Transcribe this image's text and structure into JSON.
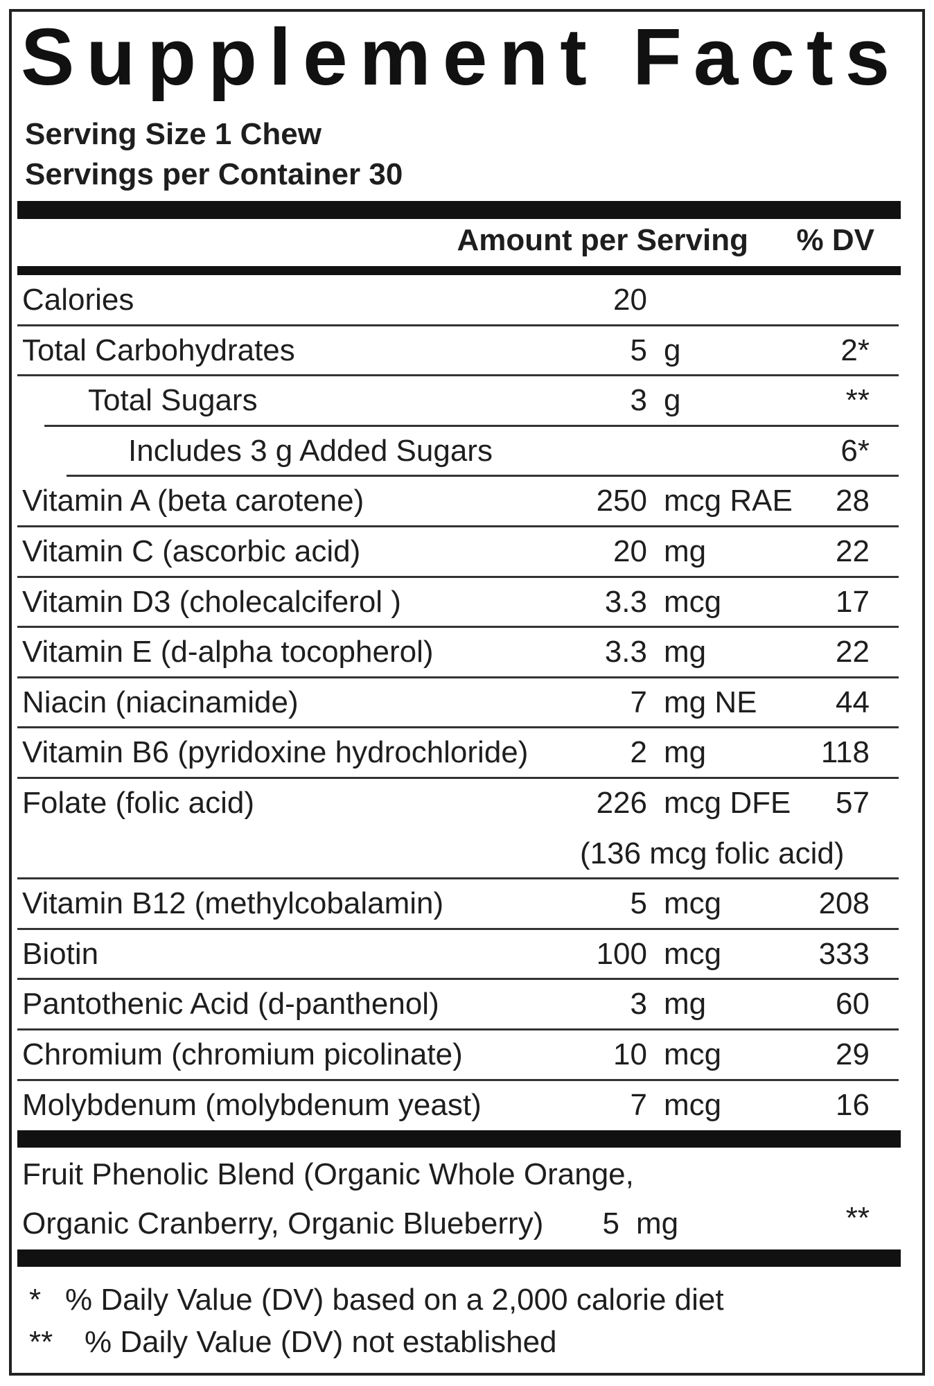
{
  "title": "Supplement Facts",
  "serving_size": "Serving Size 1 Chew",
  "servings_per_container": "Servings per Container 30",
  "header": {
    "amount": "Amount per Serving",
    "dv": "% DV"
  },
  "rows": [
    {
      "name": "Calories",
      "amount": "20"
    },
    {
      "name": "Total Carbohydrates",
      "amount": "5",
      "unit": "g",
      "dv": "2*",
      "sub_rows": [
        {
          "name": "Total Sugars",
          "amount": "3",
          "unit": "g",
          "dv": "**",
          "sub_rows": [
            {
              "name": "Includes 3 g Added Sugars",
              "dv": "6*"
            }
          ]
        }
      ]
    },
    {
      "name": "Vitamin A (beta carotene)",
      "amount": "250",
      "unit": "mcg RAE",
      "dv": "28"
    },
    {
      "name": "Vitamin C (ascorbic acid)",
      "amount": "20",
      "unit": "mg",
      "dv": "22"
    },
    {
      "name": "Vitamin D3 (cholecalciferol )",
      "amount": "3.3",
      "unit": "mcg",
      "dv": "17"
    },
    {
      "name": "Vitamin E (d-alpha tocopherol)",
      "amount": "3.3",
      "unit": "mg",
      "dv": "22"
    },
    {
      "name": "Niacin (niacinamide)",
      "amount": "7",
      "unit": "mg NE",
      "dv": "44"
    },
    {
      "name": "Vitamin B6 (pyridoxine hydrochloride)",
      "amount": "2",
      "unit": "mg",
      "dv": "118"
    },
    {
      "name": "Folate (folic acid)",
      "amount": "226",
      "unit": "mcg DFE",
      "dv": "57",
      "note": "(136 mcg folic acid)"
    },
    {
      "name": "Vitamin B12 (methylcobalamin)",
      "amount": "5",
      "unit": "mcg",
      "dv": "208"
    },
    {
      "name": "Biotin",
      "amount": "100",
      "unit": "mcg",
      "dv": "333"
    },
    {
      "name": "Pantothenic Acid (d-panthenol)",
      "amount": "3",
      "unit": "mg",
      "dv": "60"
    },
    {
      "name": "Chromium (chromium picolinate)",
      "amount": "10",
      "unit": "mcg",
      "dv": "29"
    },
    {
      "name": "Molybdenum (molybdenum yeast)",
      "amount": "7",
      "unit": "mcg",
      "dv": "16"
    }
  ],
  "blend": {
    "name_lines": [
      "Fruit Phenolic Blend (Organic Whole Orange,",
      "Organic Cranberry, Organic Blueberry)"
    ],
    "amount": "5",
    "unit": "mg",
    "dv": "**"
  },
  "footnotes": [
    {
      "mark": "*",
      "text": "% Daily Value (DV) based on a 2,000 calorie diet"
    },
    {
      "mark": "**",
      "text": "% Daily Value (DV) not established"
    }
  ]
}
